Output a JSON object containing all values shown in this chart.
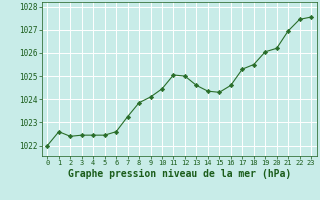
{
  "x": [
    0,
    1,
    2,
    3,
    4,
    5,
    6,
    7,
    8,
    9,
    10,
    11,
    12,
    13,
    14,
    15,
    16,
    17,
    18,
    19,
    20,
    21,
    22,
    23
  ],
  "y": [
    1022.0,
    1022.6,
    1022.4,
    1022.45,
    1022.45,
    1022.45,
    1022.6,
    1023.25,
    1023.85,
    1024.1,
    1024.45,
    1025.05,
    1025.0,
    1024.6,
    1024.35,
    1024.3,
    1024.6,
    1025.3,
    1025.5,
    1026.05,
    1026.2,
    1026.95,
    1027.45,
    1027.55
  ],
  "line_color": "#2a6e2a",
  "marker": "D",
  "marker_size": 2.2,
  "bg_color": "#c8ece8",
  "grid_color": "#ffffff",
  "xlabel": "Graphe pression niveau de la mer (hPa)",
  "xlabel_color": "#1a5c1a",
  "xlabel_fontsize": 7.0,
  "tick_color": "#1a5c1a",
  "ytick_labels": [
    "1022",
    "1023",
    "1024",
    "1025",
    "1026",
    "1027",
    "1028"
  ],
  "ylim": [
    1021.55,
    1028.2
  ],
  "xlim": [
    -0.5,
    23.5
  ],
  "yticks": [
    1022,
    1023,
    1024,
    1025,
    1026,
    1027,
    1028
  ],
  "xtick_fontsize": 5.0,
  "ytick_fontsize": 5.5
}
